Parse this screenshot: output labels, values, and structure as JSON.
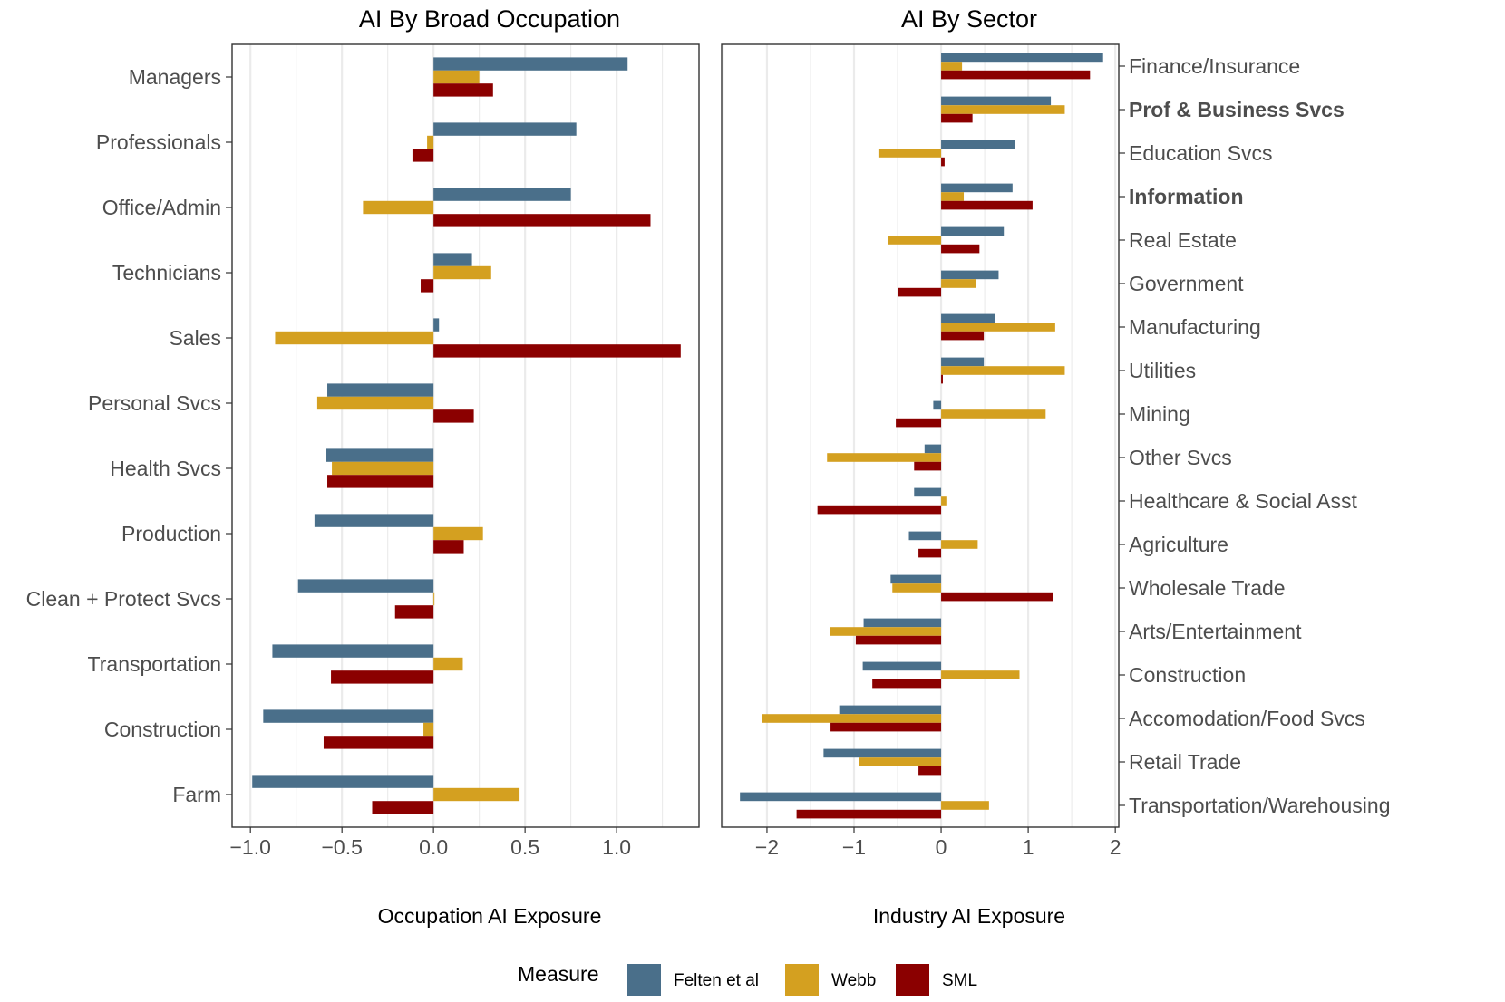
{
  "legend": {
    "title": "Measure",
    "items": [
      {
        "key": "felten",
        "label": "Felten et al",
        "color": "#4a6f8a"
      },
      {
        "key": "webb",
        "label": "Webb",
        "color": "#d4a020"
      },
      {
        "key": "sml",
        "label": "SML",
        "color": "#8b0000"
      }
    ]
  },
  "chart_data": [
    {
      "type": "bar",
      "orientation": "horizontal",
      "title": "AI By Broad Occupation",
      "xlabel": "Occupation AI Exposure",
      "xlim": [
        -1.1,
        1.45
      ],
      "xticks": [
        -1.0,
        -0.5,
        0.0,
        0.5,
        1.0
      ],
      "xtick_labels": [
        "−1.0",
        "−0.5",
        "0.0",
        "0.5",
        "1.0"
      ],
      "grid": "vertical major and minor",
      "categories": [
        "Managers",
        "Professionals",
        "Office/Admin",
        "Technicians",
        "Sales",
        "Personal Svcs",
        "Health Svcs",
        "Production",
        "Clean + Protect Svcs",
        "Transportation",
        "Construction",
        "Farm"
      ],
      "series": [
        {
          "name": "Felten et al",
          "values": [
            1.06,
            0.78,
            0.75,
            0.21,
            0.03,
            -0.58,
            -0.585,
            -0.65,
            -0.74,
            -0.88,
            -0.93,
            -0.99
          ]
        },
        {
          "name": "Webb",
          "values": [
            0.25,
            -0.035,
            -0.385,
            0.315,
            -0.865,
            -0.635,
            -0.555,
            0.27,
            0.005,
            0.16,
            -0.055,
            0.47
          ]
        },
        {
          "name": "SML",
          "values": [
            0.325,
            -0.115,
            1.185,
            -0.07,
            1.35,
            0.22,
            -0.58,
            0.165,
            -0.21,
            -0.56,
            -0.6,
            -0.335
          ]
        }
      ]
    },
    {
      "type": "bar",
      "orientation": "horizontal",
      "title": "AI By Sector",
      "xlabel": "Industry AI Exposure",
      "xlim": [
        -2.52,
        2.04
      ],
      "xticks": [
        -2,
        -1,
        0,
        1,
        2
      ],
      "xtick_labels": [
        "−2",
        "−1",
        "0",
        "1",
        "2"
      ],
      "grid": "vertical major and minor",
      "categories": [
        "Finance/Insurance",
        "Prof & Business Svcs",
        "Education Svcs",
        "Information",
        "Real Estate",
        "Government",
        "Manufacturing",
        "Utilities",
        "Mining",
        "Other Svcs",
        "Healthcare & Social Asst",
        "Agriculture",
        "Wholesale Trade",
        "Arts/Entertainment",
        "Construction",
        "Accomodation/Food Svcs",
        "Retail Trade",
        "Transportation/Warehousing"
      ],
      "bold_categories": [
        "Prof & Business Svcs",
        "Information"
      ],
      "series": [
        {
          "name": "Felten et al",
          "values": [
            1.86,
            1.26,
            0.85,
            0.82,
            0.72,
            0.66,
            0.62,
            0.49,
            -0.09,
            -0.19,
            -0.31,
            -0.37,
            -0.58,
            -0.89,
            -0.9,
            -1.17,
            -1.35,
            -2.31
          ]
        },
        {
          "name": "Webb",
          "values": [
            0.24,
            1.42,
            -0.72,
            0.26,
            -0.61,
            0.4,
            1.31,
            1.42,
            1.2,
            -1.31,
            0.06,
            0.42,
            -0.56,
            -1.28,
            0.9,
            -2.06,
            -0.94,
            0.55
          ]
        },
        {
          "name": "SML",
          "values": [
            1.71,
            0.36,
            0.04,
            1.05,
            0.44,
            -0.5,
            0.49,
            0.02,
            -0.52,
            -0.31,
            -1.42,
            -0.26,
            1.29,
            -0.98,
            -0.79,
            -1.27,
            -0.26,
            -1.66
          ]
        }
      ]
    }
  ]
}
